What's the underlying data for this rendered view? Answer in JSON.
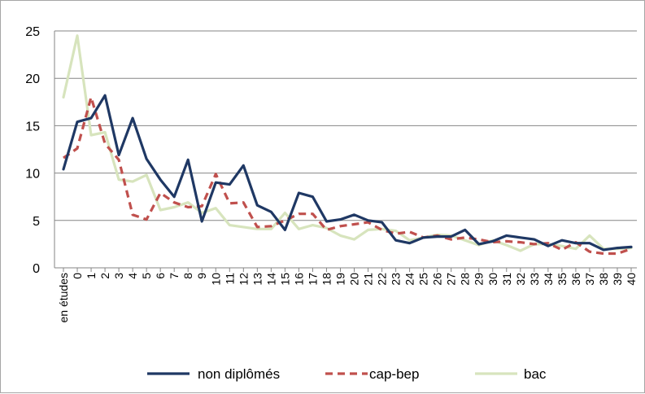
{
  "chart_data": {
    "type": "line",
    "title": "",
    "xlabel": "",
    "ylabel": "",
    "ylim": [
      0,
      25
    ],
    "yticks": [
      0,
      5,
      10,
      15,
      20,
      25
    ],
    "grid": "horizontal",
    "legend_position": "bottom",
    "categories": [
      "en études",
      "0",
      "1",
      "2",
      "3",
      "4",
      "5",
      "6",
      "7",
      "8",
      "9",
      "10",
      "11",
      "12",
      "13",
      "14",
      "15",
      "16",
      "17",
      "18",
      "19",
      "20",
      "21",
      "22",
      "23",
      "24",
      "25",
      "26",
      "27",
      "28",
      "29",
      "30",
      "31",
      "32",
      "33",
      "34",
      "35",
      "36",
      "37",
      "38",
      "39",
      "40"
    ],
    "series": [
      {
        "name": "non diplômés",
        "color": "#1f3864",
        "style": "solid",
        "values": [
          10.4,
          15.4,
          15.8,
          18.2,
          11.9,
          15.8,
          11.5,
          9.3,
          7.5,
          11.4,
          4.9,
          9.0,
          8.8,
          10.8,
          6.6,
          5.9,
          4.0,
          7.9,
          7.5,
          4.9,
          5.1,
          5.6,
          5.0,
          4.8,
          2.9,
          2.6,
          3.2,
          3.3,
          3.3,
          4.0,
          2.5,
          2.8,
          3.4,
          3.2,
          3.0,
          2.3,
          2.9,
          2.6,
          2.6,
          1.9,
          2.1,
          2.2
        ]
      },
      {
        "name": "cap-bep",
        "color": "#c0504d",
        "style": "dashed",
        "values": [
          11.6,
          12.6,
          18.0,
          13.1,
          11.4,
          5.6,
          5.1,
          7.9,
          6.9,
          6.4,
          6.5,
          9.9,
          6.8,
          6.9,
          4.3,
          4.4,
          5.0,
          5.7,
          5.7,
          4.0,
          4.4,
          4.6,
          4.8,
          4.0,
          3.6,
          3.8,
          3.2,
          3.4,
          3.0,
          3.2,
          3.0,
          2.7,
          2.8,
          2.7,
          2.5,
          2.6,
          1.9,
          2.7,
          1.7,
          1.5,
          1.5,
          2.0
        ]
      },
      {
        "name": "bac",
        "color": "#d7e4bd",
        "style": "solid",
        "values": [
          18.0,
          24.5,
          14.0,
          14.3,
          9.3,
          9.1,
          9.8,
          6.1,
          6.4,
          6.9,
          5.8,
          6.3,
          4.5,
          4.3,
          4.1,
          4.1,
          5.8,
          4.1,
          4.5,
          4.2,
          3.4,
          3.0,
          4.0,
          4.1,
          3.9,
          2.9,
          3.2,
          3.5,
          3.4,
          2.9,
          2.4,
          2.9,
          2.4,
          1.8,
          2.5,
          2.5,
          2.3,
          2.0,
          3.4,
          2.0,
          2.0,
          2.1
        ]
      }
    ]
  }
}
